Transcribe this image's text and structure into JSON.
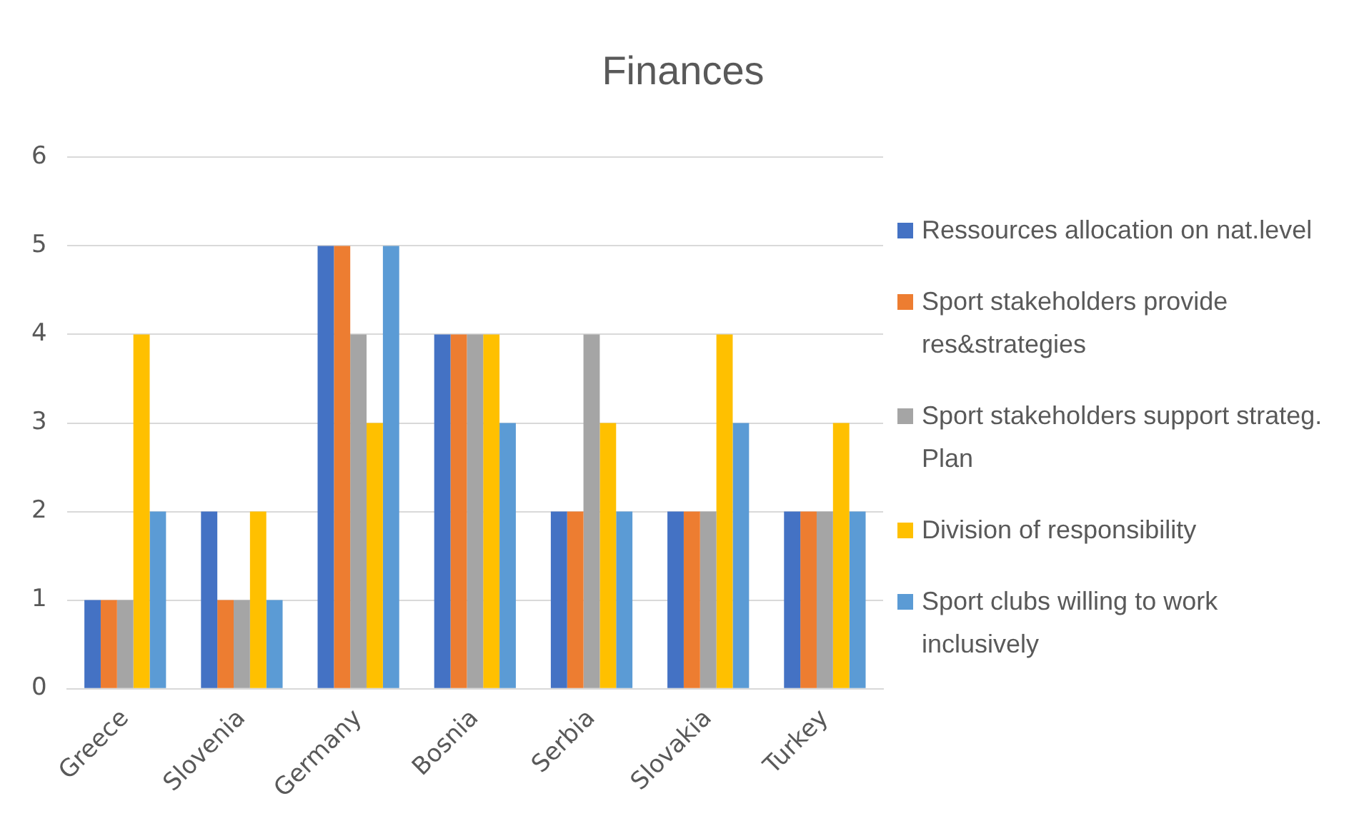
{
  "chart_data": {
    "type": "bar",
    "title": "Finances",
    "categories": [
      "Greece",
      "Slovenia",
      "Germany",
      "Bosnia",
      "Serbia",
      "Slovakia",
      "Turkey"
    ],
    "series": [
      {
        "name": "Ressources allocation on nat.level",
        "color": "#4472c4",
        "values": [
          1,
          2,
          5,
          4,
          2,
          2,
          2
        ]
      },
      {
        "name": "Sport stakeholders provide res&strategies",
        "color": "#ed7d31",
        "values": [
          1,
          1,
          5,
          4,
          2,
          2,
          2
        ]
      },
      {
        "name": "Sport stakeholders support strateg. Plan",
        "color": "#a5a5a5",
        "values": [
          1,
          1,
          4,
          4,
          4,
          2,
          2
        ]
      },
      {
        "name": "Division of responsibility",
        "color": "#ffc000",
        "values": [
          4,
          2,
          3,
          4,
          3,
          4,
          3
        ]
      },
      {
        "name": "Sport clubs willing to work inclusively",
        "color": "#5b9bd5",
        "values": [
          2,
          1,
          5,
          3,
          2,
          3,
          2
        ]
      }
    ],
    "ylim": [
      0,
      6
    ],
    "yticks": [
      0,
      1,
      2,
      3,
      4,
      5,
      6
    ],
    "grid": "y",
    "legend": "right"
  }
}
